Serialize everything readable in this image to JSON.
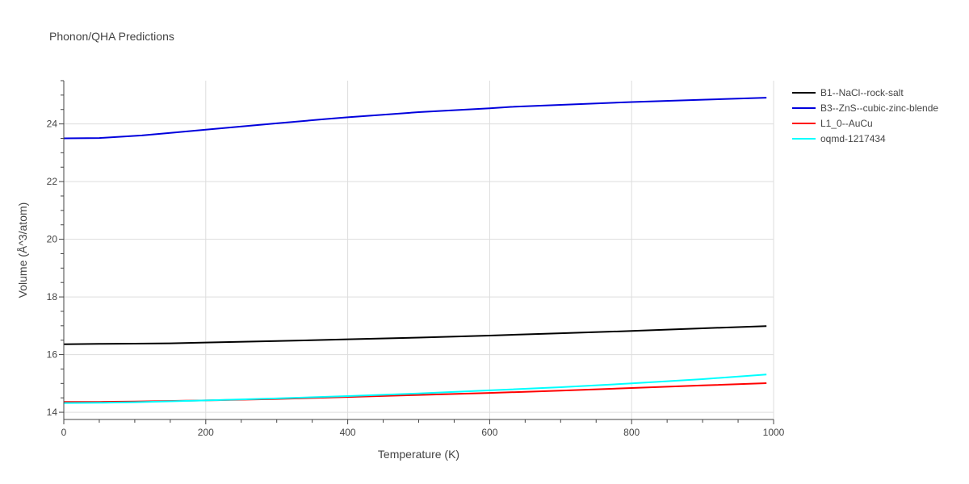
{
  "chart_data": {
    "type": "line",
    "title": "Phonon/QHA Predictions",
    "xlabel": "Temperature (K)",
    "ylabel": "Volume (Å^3/atom)",
    "xlim": [
      0,
      1000
    ],
    "ylim": [
      13.75,
      25.5
    ],
    "x_ticks": [
      0,
      200,
      400,
      600,
      800,
      1000
    ],
    "y_ticks": [
      14,
      16,
      18,
      20,
      22,
      24
    ],
    "grid": true,
    "legend_position": "top-right",
    "series": [
      {
        "name": "B1--NaCl--rock-salt",
        "color": "#000000",
        "x": [
          0,
          50,
          100,
          150,
          200,
          300,
          400,
          500,
          600,
          700,
          800,
          900,
          990
        ],
        "y": [
          16.36,
          16.37,
          16.38,
          16.39,
          16.42,
          16.47,
          16.53,
          16.59,
          16.66,
          16.74,
          16.82,
          16.91,
          16.99
        ]
      },
      {
        "name": "B3--ZnS--cubic-zinc-blende",
        "color": "#0000dd",
        "x": [
          0,
          50,
          110,
          150,
          200,
          300,
          370,
          400,
          500,
          600,
          630,
          700,
          800,
          900,
          990
        ],
        "y": [
          23.5,
          23.51,
          23.6,
          23.69,
          23.8,
          24.02,
          24.17,
          24.23,
          24.41,
          24.54,
          24.59,
          24.66,
          24.76,
          24.84,
          24.91
        ]
      },
      {
        "name": "L1_0--AuCu",
        "color": "#ff0000",
        "x": [
          0,
          50,
          100,
          200,
          300,
          400,
          500,
          600,
          700,
          800,
          900,
          990
        ],
        "y": [
          14.36,
          14.36,
          14.37,
          14.41,
          14.46,
          14.53,
          14.6,
          14.67,
          14.75,
          14.84,
          14.93,
          15.01
        ]
      },
      {
        "name": "oqmd-1217434",
        "color": "#00ffff",
        "x": [
          0,
          50,
          100,
          200,
          300,
          400,
          500,
          600,
          700,
          800,
          900,
          990
        ],
        "y": [
          14.32,
          14.33,
          14.35,
          14.41,
          14.48,
          14.56,
          14.65,
          14.76,
          14.87,
          15.0,
          15.15,
          15.31
        ]
      }
    ]
  }
}
